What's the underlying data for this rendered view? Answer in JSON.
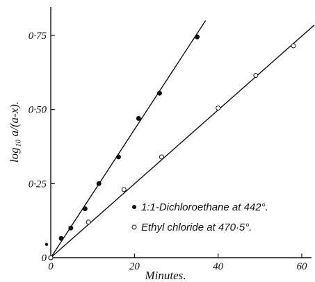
{
  "chart_data": {
    "type": "scatter",
    "xlabel": "Minutes.",
    "ylabel": "log₁₀ a/(a-x).",
    "xlim": [
      0,
      60
    ],
    "ylim": [
      0,
      0.8
    ],
    "x_ticks": [
      {
        "value": 0,
        "label": "0"
      },
      {
        "value": 20,
        "label": "20"
      },
      {
        "value": 40,
        "label": "40"
      },
      {
        "value": 60,
        "label": "60"
      }
    ],
    "y_ticks": [
      {
        "value": 0,
        "label": "0"
      },
      {
        "value": 0.25,
        "label": "0·25"
      },
      {
        "value": 0.5,
        "label": "0·50"
      },
      {
        "value": 0.75,
        "label": "0·75"
      }
    ],
    "grid": false,
    "legend_position": "bottom-right",
    "series": [
      {
        "name": "1:1-Dichloroethane at 442°.",
        "marker": "filled-circle",
        "points": [
          [
            0,
            0
          ],
          [
            2.5,
            0.065
          ],
          [
            4.8,
            0.1
          ],
          [
            8.2,
            0.165
          ],
          [
            11.5,
            0.25
          ],
          [
            16.2,
            0.34
          ],
          [
            21,
            0.47
          ],
          [
            26,
            0.555
          ],
          [
            35,
            0.745
          ]
        ],
        "fit_line": {
          "x": [
            0,
            37
          ],
          "y": [
            0,
            0.8
          ]
        }
      },
      {
        "name": "Ethyl chloride at 470·5°.",
        "marker": "open-circle",
        "points": [
          [
            0,
            0
          ],
          [
            9,
            0.12
          ],
          [
            17.5,
            0.23
          ],
          [
            26.5,
            0.34
          ],
          [
            40,
            0.505
          ],
          [
            49,
            0.615
          ],
          [
            58,
            0.715
          ]
        ],
        "fit_line": {
          "x": [
            0,
            63
          ],
          "y": [
            0,
            0.785
          ]
        }
      }
    ],
    "extra_marks": [
      [
        -1,
        0.045
      ]
    ]
  }
}
